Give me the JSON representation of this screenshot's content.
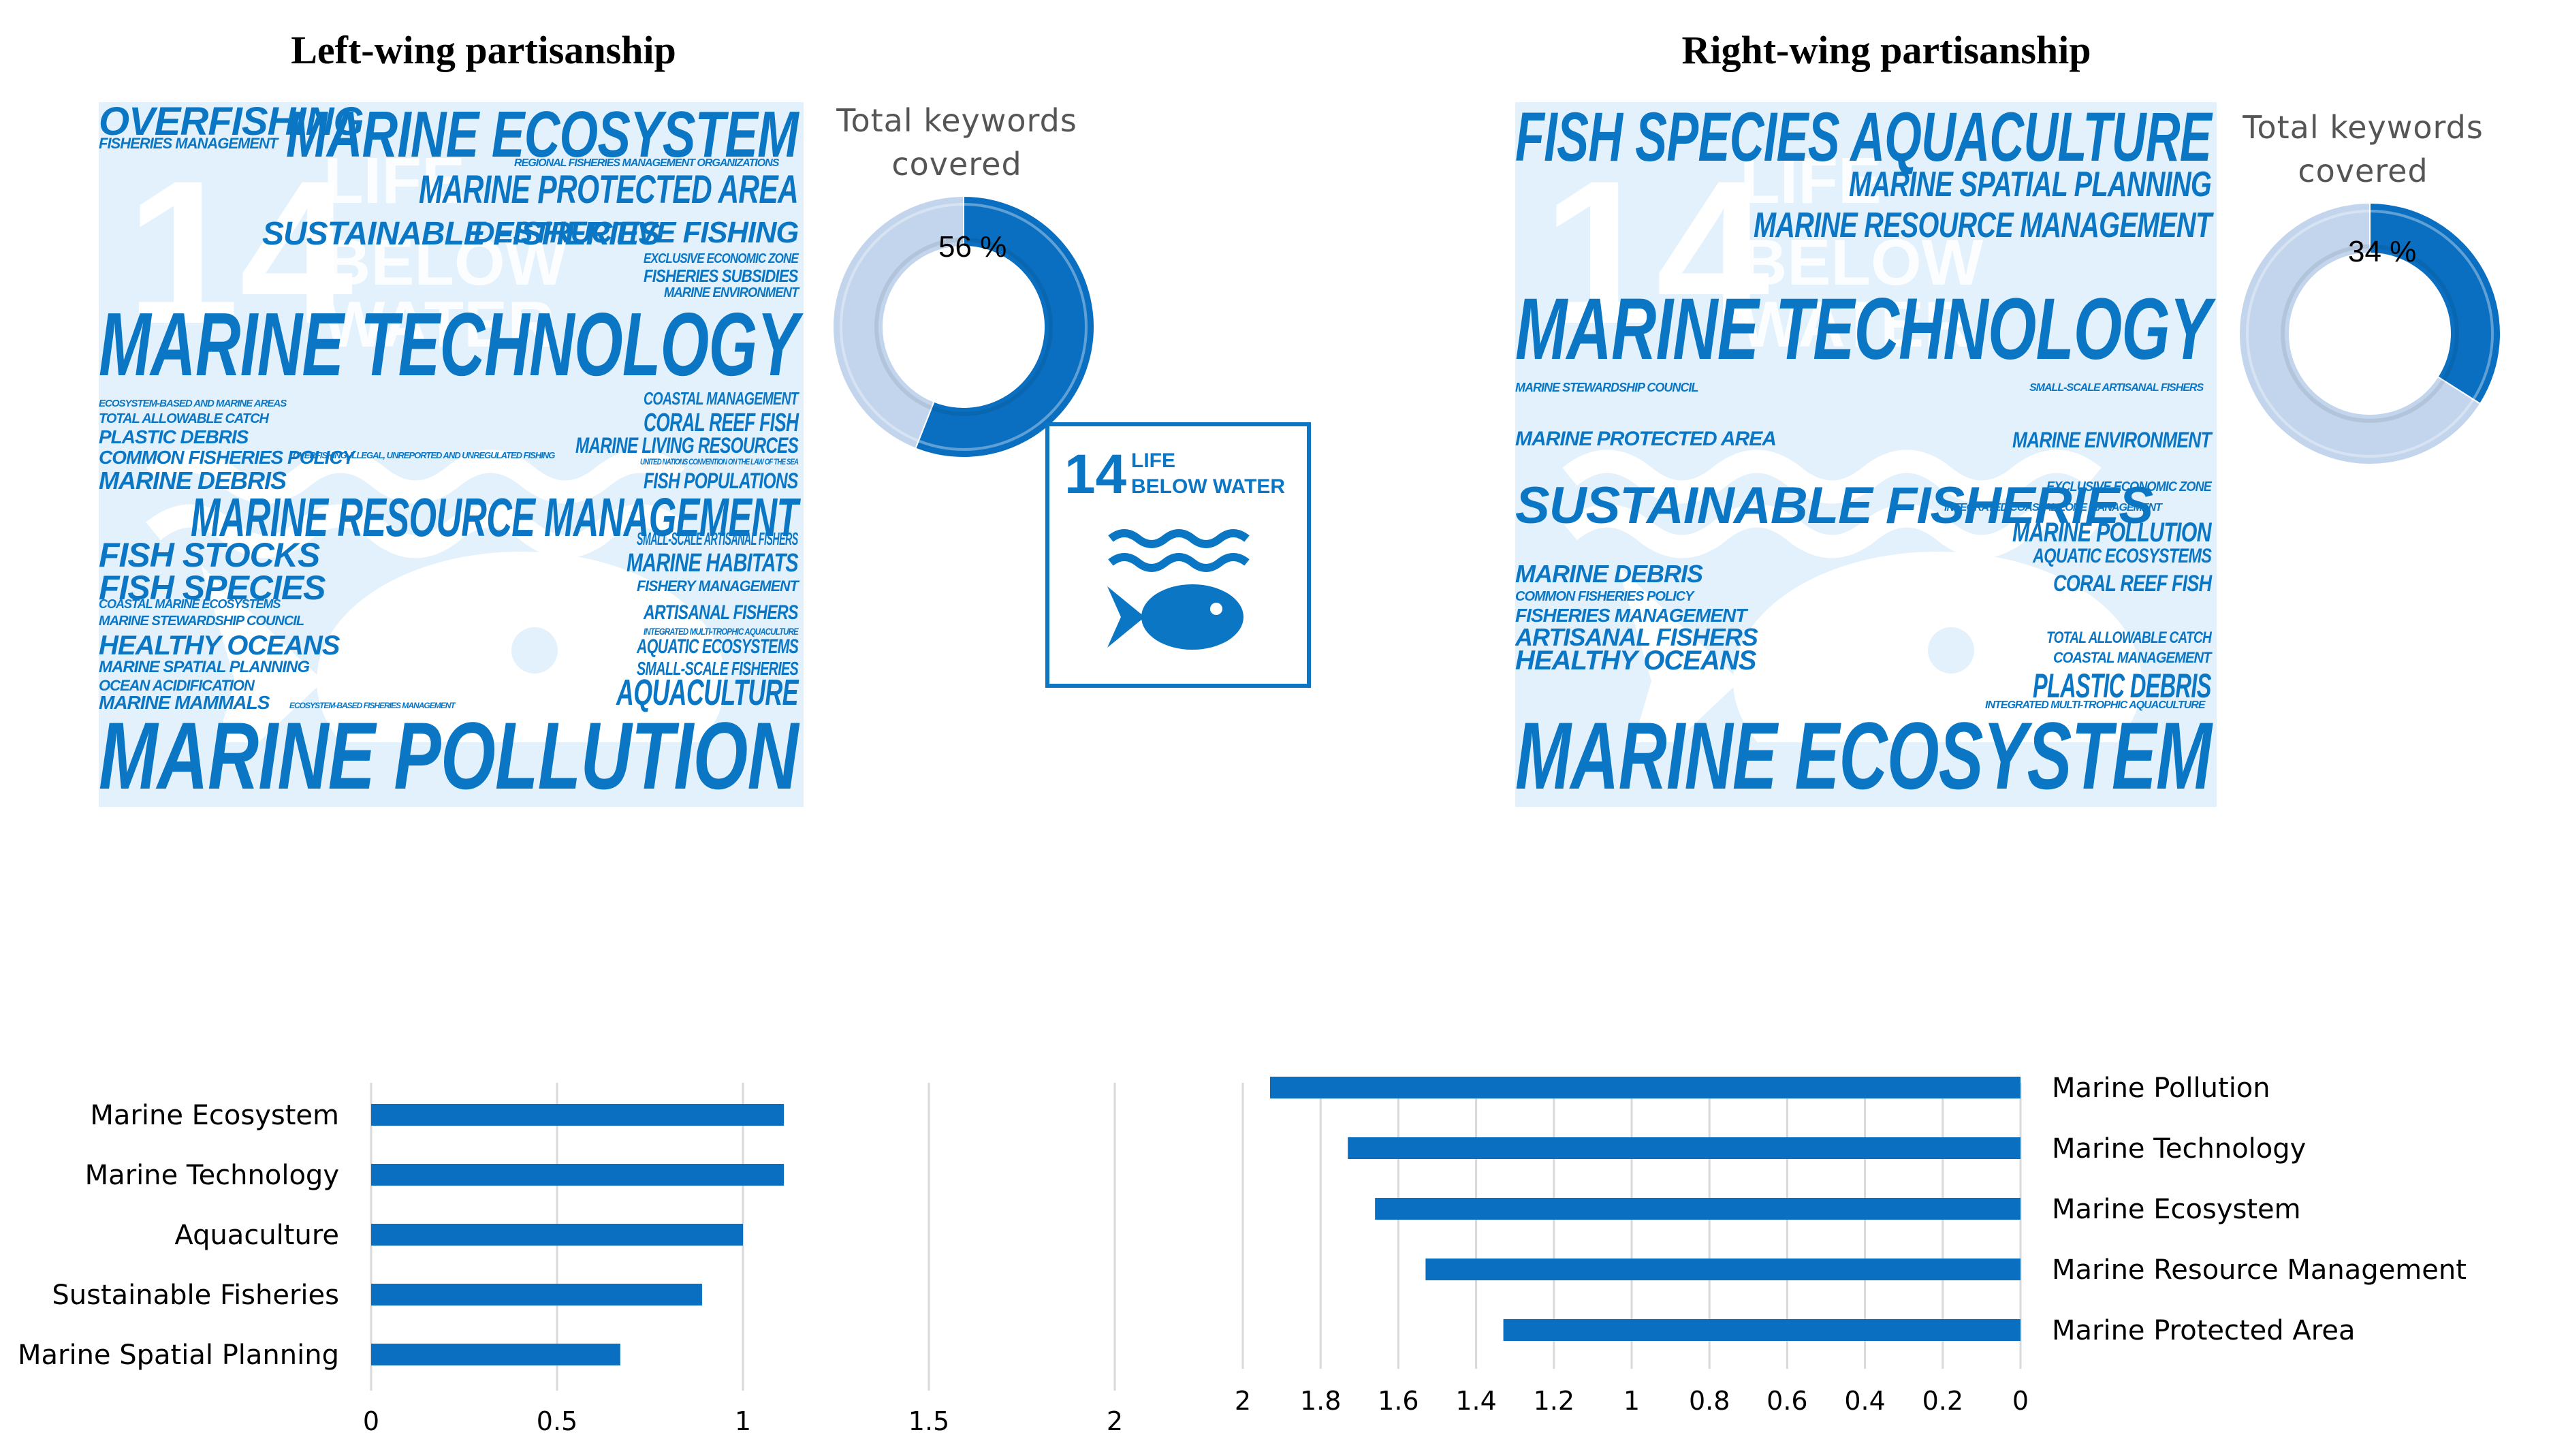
{
  "left_title": "Left-wing partisanship",
  "right_title": "Right-wing partisanship",
  "sdg": {
    "num": "14",
    "line1": "LIFE",
    "line2": "BELOW WATER",
    "icon": "fish-wave-icon",
    "color": "#0a76c4"
  },
  "cloud_bg": {
    "num": "14",
    "line1": "LIFE",
    "line2": "BELOW WATER"
  },
  "left_cloud": [
    "OVERFISHING",
    "FISHERIES MANAGEMENT",
    "MARINE ECOSYSTEM",
    "REGIONAL FISHERIES MANAGEMENT ORGANIZATIONS",
    "MARINE PROTECTED AREA",
    "SUSTAINABLE FISHERIES",
    "DESTRUCTIVE FISHING",
    "EXCLUSIVE ECONOMIC ZONE",
    "FISHERIES SUBSIDIES",
    "MARINE ENVIRONMENT",
    "MARINE TECHNOLOGY",
    "ECOSYSTEM-BASED AND MARINE AREAS",
    "TOTAL ALLOWABLE CATCH",
    "PLASTIC DEBRIS",
    "COMMON FISHERIES POLICY",
    "OVERFISHING, ILLEGAL, UNREPORTED AND UNREGULATED FISHING",
    "COASTAL MANAGEMENT",
    "CORAL REEF FISH",
    "MARINE LIVING RESOURCES",
    "UNITED NATIONS CONVENTION ON THE LAW OF THE SEA",
    "FISH POPULATIONS",
    "MARINE DEBRIS",
    "MARINE RESOURCE MANAGEMENT",
    "SMALL-SCALE ARTISANAL FISHERS",
    "FISH STOCKS",
    "MARINE HABITATS",
    "FISH SPECIES",
    "FISHERY MANAGEMENT",
    "COASTAL MARINE ECOSYSTEMS",
    "ARTISANAL FISHERS",
    "MARINE STEWARDSHIP COUNCIL",
    "INTEGRATED MULTI-TROPHIC AQUACULTURE",
    "HEALTHY OCEANS",
    "AQUATIC ECOSYSTEMS",
    "MARINE SPATIAL PLANNING",
    "SMALL-SCALE FISHERIES",
    "OCEAN ACIDIFICATION",
    "AQUACULTURE",
    "MARINE MAMMALS",
    "ECOSYSTEM-BASED FISHERIES MANAGEMENT",
    "MARINE POLLUTION"
  ],
  "right_cloud": [
    "FISH SPECIES AQUACULTURE",
    "MARINE SPATIAL PLANNING",
    "MARINE RESOURCE MANAGEMENT",
    "MARINE TECHNOLOGY",
    "MARINE STEWARDSHIP COUNCIL",
    "SMALL-SCALE ARTISANAL FISHERS",
    "MARINE PROTECTED AREA",
    "MARINE ENVIRONMENT",
    "EXCLUSIVE ECONOMIC ZONE",
    "SUSTAINABLE FISHERIES",
    "INTEGRATED COASTAL ZONE MANAGEMENT",
    "MARINE POLLUTION",
    "AQUATIC ECOSYSTEMS",
    "MARINE DEBRIS",
    "CORAL REEF FISH",
    "COMMON FISHERIES POLICY",
    "FISHERIES MANAGEMENT",
    "ARTISANAL FISHERS",
    "HEALTHY OCEANS",
    "TOTAL ALLOWABLE CATCH",
    "COASTAL MANAGEMENT",
    "PLASTIC DEBRIS",
    "INTEGRATED MULTI-TROPHIC AQUACULTURE",
    "MARINE ECOSYSTEM"
  ],
  "chart_data": [
    {
      "type": "pie",
      "title": "Total keywords covered",
      "label": "56 %",
      "values": [
        56,
        44
      ],
      "colors": [
        "#0a6fc0",
        "#c2d5ec"
      ]
    },
    {
      "type": "pie",
      "title": "Total keywords covered",
      "label": "34 %",
      "values": [
        34,
        66
      ],
      "colors": [
        "#0a6fc0",
        "#c2d5ec"
      ]
    },
    {
      "type": "bar",
      "orientation": "horizontal",
      "categories": [
        "Marine Ecosystem",
        "Marine Technology",
        "Aquaculture",
        "Sustainable Fisheries",
        "Marine Spatial Planning"
      ],
      "values": [
        1.11,
        1.11,
        1.0,
        0.89,
        0.67
      ],
      "xlim": [
        0,
        2
      ],
      "ticks": [
        "0",
        "0.5",
        "1",
        "1.5",
        "2"
      ],
      "grid": true,
      "color": "#0a6fc0"
    },
    {
      "type": "bar",
      "orientation": "horizontal",
      "reversed_x": true,
      "categories": [
        "Marine Pollution",
        "Marine Technology",
        "Marine Ecosystem",
        "Marine Resource Management",
        "Marine Protected Area"
      ],
      "values": [
        1.93,
        1.73,
        1.66,
        1.53,
        1.33
      ],
      "xlim": [
        0,
        2
      ],
      "ticks": [
        "2",
        "1.8",
        "1.6",
        "1.4",
        "1.2",
        "1",
        "0.8",
        "0.6",
        "0.4",
        "0.2",
        "0"
      ],
      "grid": true,
      "color": "#0a6fc0"
    }
  ]
}
